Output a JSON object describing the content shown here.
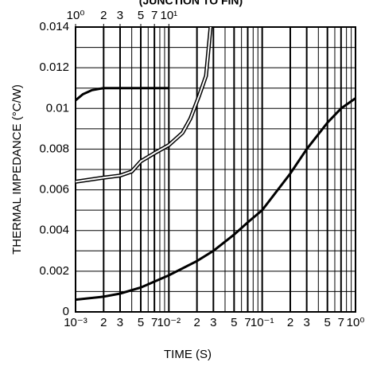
{
  "chart_data": {
    "type": "line",
    "title": "(JUNCTION TO FIN)",
    "xlabel": "TIME (S)",
    "ylabel": "THERMAL IMPEDANCE (°C/W)",
    "xscale": "log",
    "grid": true,
    "xlim": [
      0.001,
      1
    ],
    "xticks": [
      {
        "value": 0.001,
        "label": "10⁻³"
      },
      {
        "value": 0.002,
        "label": "2"
      },
      {
        "value": 0.003,
        "label": "3"
      },
      {
        "value": 0.005,
        "label": "5"
      },
      {
        "value": 0.007,
        "label": "7"
      },
      {
        "value": 0.01,
        "label": "10⁻²"
      },
      {
        "value": 0.02,
        "label": "2"
      },
      {
        "value": 0.03,
        "label": "3"
      },
      {
        "value": 0.05,
        "label": "5"
      },
      {
        "value": 0.07,
        "label": "7"
      },
      {
        "value": 0.1,
        "label": "10⁻¹"
      },
      {
        "value": 0.2,
        "label": "2"
      },
      {
        "value": 0.3,
        "label": "3"
      },
      {
        "value": 0.5,
        "label": "5"
      },
      {
        "value": 0.7,
        "label": "7"
      },
      {
        "value": 1,
        "label": "10⁰"
      }
    ],
    "x2lim": [
      1,
      1000
    ],
    "x2ticks": [
      {
        "value": 1,
        "label": "10⁰"
      },
      2,
      3,
      5,
      7,
      {
        "value": 10,
        "label": "10¹"
      }
    ],
    "ylim": [
      0,
      0.014
    ],
    "yticks": [
      0,
      0.002,
      0.004,
      0.006,
      0.008,
      0.01,
      0.012,
      0.014
    ],
    "series": [
      {
        "color": "#000000",
        "line_style": "solid",
        "x": [
          0.001,
          0.002,
          0.003,
          0.005,
          0.01,
          0.02,
          0.03,
          0.05,
          0.07,
          0.1,
          0.2,
          0.3,
          0.5,
          0.7,
          1
        ],
        "values": [
          0.0006,
          0.00075,
          0.0009,
          0.0012,
          0.0018,
          0.0025,
          0.003,
          0.0038,
          0.0044,
          0.005,
          0.0068,
          0.008,
          0.0093,
          0.01,
          0.0105
        ]
      },
      {
        "color": "#000000",
        "line_style": "solid",
        "axis": "x2",
        "x": [
          1,
          1.2,
          1.5,
          2,
          10
        ],
        "values": [
          0.0104,
          0.0107,
          0.0109,
          0.011,
          0.011
        ]
      },
      {
        "color": "#000000",
        "line_style": "double",
        "axis": "x2",
        "x": [
          1,
          2,
          3,
          4,
          5,
          7,
          10,
          14,
          17,
          21,
          25,
          28
        ],
        "values": [
          0.0064,
          0.0066,
          0.0067,
          0.0069,
          0.0074,
          0.0078,
          0.0082,
          0.0088,
          0.0095,
          0.0106,
          0.0116,
          0.014
        ]
      }
    ]
  }
}
